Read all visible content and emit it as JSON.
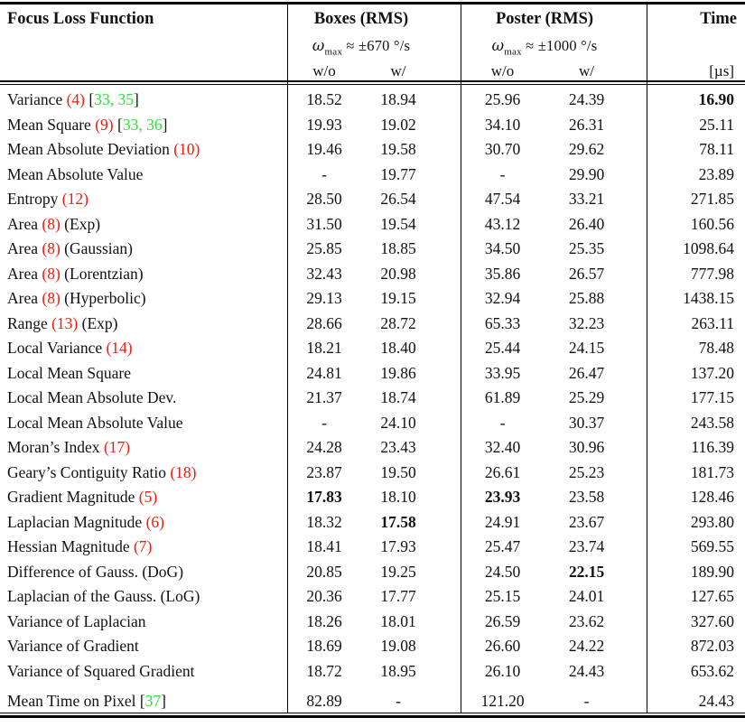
{
  "colors": {
    "eq_ref": "#f31b0d",
    "citation": "#2be336",
    "text": "#111111"
  },
  "header": {
    "focus_col": "Focus Loss Function",
    "boxes": {
      "title": "Boxes (RMS)",
      "omega_symbol": "ω",
      "omega_sub": "max",
      "omega_rest": " ≈ ±670 °/s",
      "sub_wo": "w/o",
      "sub_w": "w/"
    },
    "poster": {
      "title": "Poster (RMS)",
      "omega_symbol": "ω",
      "omega_sub": "max",
      "omega_rest": " ≈ ±1000 °/s",
      "sub_wo": "w/o",
      "sub_w": "w/"
    },
    "time": {
      "title": "Time",
      "unit": "[µs]"
    }
  },
  "rows": [
    {
      "label": [
        {
          "t": "Variance ",
          "c": "text"
        },
        {
          "t": "(4)",
          "c": "eq"
        },
        {
          "t": " [",
          "c": "text"
        },
        {
          "t": "33, 35",
          "c": "cite"
        },
        {
          "t": "]",
          "c": "text"
        }
      ],
      "values": [
        "18.52",
        "18.94",
        "25.96",
        "24.39",
        "16.90"
      ],
      "bold": [
        4
      ]
    },
    {
      "label": [
        {
          "t": "Mean Square ",
          "c": "text"
        },
        {
          "t": "(9)",
          "c": "eq"
        },
        {
          "t": " [",
          "c": "text"
        },
        {
          "t": "33, 36",
          "c": "cite"
        },
        {
          "t": "]",
          "c": "text"
        }
      ],
      "values": [
        "19.93",
        "19.02",
        "34.10",
        "26.31",
        "25.11"
      ],
      "bold": []
    },
    {
      "label": [
        {
          "t": "Mean Absolute Deviation ",
          "c": "text"
        },
        {
          "t": "(10)",
          "c": "eq"
        }
      ],
      "values": [
        "19.46",
        "19.58",
        "30.70",
        "29.62",
        "78.11"
      ],
      "bold": []
    },
    {
      "label": [
        {
          "t": "Mean Absolute Value",
          "c": "text"
        }
      ],
      "values": [
        "-",
        "19.77",
        "-",
        "29.90",
        "23.89"
      ],
      "bold": []
    },
    {
      "label": [
        {
          "t": "Entropy ",
          "c": "text"
        },
        {
          "t": "(12)",
          "c": "eq"
        }
      ],
      "values": [
        "28.50",
        "26.54",
        "47.54",
        "33.21",
        "271.85"
      ],
      "bold": []
    },
    {
      "label": [
        {
          "t": "Area ",
          "c": "text"
        },
        {
          "t": "(8)",
          "c": "eq"
        },
        {
          "t": " (Exp)",
          "c": "text"
        }
      ],
      "values": [
        "31.50",
        "19.54",
        "43.12",
        "26.40",
        "160.56"
      ],
      "bold": []
    },
    {
      "label": [
        {
          "t": "Area ",
          "c": "text"
        },
        {
          "t": "(8)",
          "c": "eq"
        },
        {
          "t": " (Gaussian)",
          "c": "text"
        }
      ],
      "values": [
        "25.85",
        "18.85",
        "34.50",
        "25.35",
        "1098.64"
      ],
      "bold": []
    },
    {
      "label": [
        {
          "t": "Area ",
          "c": "text"
        },
        {
          "t": "(8)",
          "c": "eq"
        },
        {
          "t": " (Lorentzian)",
          "c": "text"
        }
      ],
      "values": [
        "32.43",
        "20.98",
        "35.86",
        "26.57",
        "777.98"
      ],
      "bold": []
    },
    {
      "label": [
        {
          "t": "Area ",
          "c": "text"
        },
        {
          "t": "(8)",
          "c": "eq"
        },
        {
          "t": " (Hyperbolic)",
          "c": "text"
        }
      ],
      "values": [
        "29.13",
        "19.15",
        "32.94",
        "25.88",
        "1438.15"
      ],
      "bold": []
    },
    {
      "label": [
        {
          "t": "Range ",
          "c": "text"
        },
        {
          "t": "(13)",
          "c": "eq"
        },
        {
          "t": " (Exp)",
          "c": "text"
        }
      ],
      "values": [
        "28.66",
        "28.72",
        "65.33",
        "32.23",
        "263.11"
      ],
      "bold": []
    },
    {
      "label": [
        {
          "t": "Local Variance ",
          "c": "text"
        },
        {
          "t": "(14)",
          "c": "eq"
        }
      ],
      "values": [
        "18.21",
        "18.40",
        "25.44",
        "24.15",
        "78.48"
      ],
      "bold": []
    },
    {
      "label": [
        {
          "t": "Local Mean Square",
          "c": "text"
        }
      ],
      "values": [
        "24.81",
        "19.86",
        "33.95",
        "26.47",
        "137.20"
      ],
      "bold": []
    },
    {
      "label": [
        {
          "t": "Local Mean Absolute Dev.",
          "c": "text"
        }
      ],
      "values": [
        "21.37",
        "18.74",
        "61.89",
        "25.29",
        "177.15"
      ],
      "bold": []
    },
    {
      "label": [
        {
          "t": "Local Mean Absolute Value",
          "c": "text"
        }
      ],
      "values": [
        "-",
        "24.10",
        "-",
        "30.37",
        "243.58"
      ],
      "bold": []
    },
    {
      "label": [
        {
          "t": "Moran’s Index ",
          "c": "text"
        },
        {
          "t": "(17)",
          "c": "eq"
        }
      ],
      "values": [
        "24.28",
        "23.43",
        "32.40",
        "30.96",
        "116.39"
      ],
      "bold": []
    },
    {
      "label": [
        {
          "t": "Geary’s Contiguity Ratio ",
          "c": "text"
        },
        {
          "t": "(18)",
          "c": "eq"
        }
      ],
      "values": [
        "23.87",
        "19.50",
        "26.61",
        "25.23",
        "181.73"
      ],
      "bold": []
    },
    {
      "label": [
        {
          "t": "Gradient Magnitude ",
          "c": "text"
        },
        {
          "t": "(5)",
          "c": "eq"
        }
      ],
      "values": [
        "17.83",
        "18.10",
        "23.93",
        "23.58",
        "128.46"
      ],
      "bold": [
        0,
        2
      ]
    },
    {
      "label": [
        {
          "t": "Laplacian Magnitude ",
          "c": "text"
        },
        {
          "t": "(6)",
          "c": "eq"
        }
      ],
      "values": [
        "18.32",
        "17.58",
        "24.91",
        "23.67",
        "293.80"
      ],
      "bold": [
        1
      ]
    },
    {
      "label": [
        {
          "t": "Hessian Magnitude ",
          "c": "text"
        },
        {
          "t": "(7)",
          "c": "eq"
        }
      ],
      "values": [
        "18.41",
        "17.93",
        "25.47",
        "23.74",
        "569.55"
      ],
      "bold": []
    },
    {
      "label": [
        {
          "t": "Difference of Gauss. (DoG)",
          "c": "text"
        }
      ],
      "values": [
        "20.85",
        "19.25",
        "24.50",
        "22.15",
        "189.90"
      ],
      "bold": [
        3
      ]
    },
    {
      "label": [
        {
          "t": "Laplacian of the Gauss. (LoG)",
          "c": "text"
        }
      ],
      "values": [
        "20.36",
        "17.77",
        "25.15",
        "24.01",
        "127.65"
      ],
      "bold": []
    },
    {
      "label": [
        {
          "t": "Variance of Laplacian",
          "c": "text"
        }
      ],
      "values": [
        "18.26",
        "18.01",
        "26.59",
        "23.62",
        "327.60"
      ],
      "bold": []
    },
    {
      "label": [
        {
          "t": "Variance of Gradient",
          "c": "text"
        }
      ],
      "values": [
        "18.69",
        "19.08",
        "26.60",
        "24.22",
        "872.03"
      ],
      "bold": []
    },
    {
      "label": [
        {
          "t": "Variance of Squared Gradient",
          "c": "text"
        }
      ],
      "values": [
        "18.72",
        "18.95",
        "26.10",
        "24.43",
        "653.62"
      ],
      "bold": []
    },
    {
      "label": [
        {
          "t": "Mean Time on Pixel ",
          "c": "text"
        },
        {
          "t": "[",
          "c": "text"
        },
        {
          "t": "37",
          "c": "cite"
        },
        {
          "t": "]",
          "c": "text"
        }
      ],
      "values": [
        "82.89",
        "-",
        "121.20",
        "-",
        "24.43"
      ],
      "bold": [],
      "gap_above": true
    }
  ]
}
